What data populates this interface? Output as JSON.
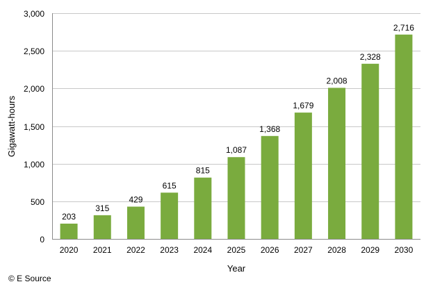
{
  "chart_data": {
    "type": "bar",
    "categories": [
      "2020",
      "2021",
      "2022",
      "2023",
      "2024",
      "2025",
      "2026",
      "2027",
      "2028",
      "2029",
      "2030"
    ],
    "values": [
      203,
      315,
      429,
      615,
      815,
      1087,
      1368,
      1679,
      2008,
      2328,
      2716
    ],
    "data_labels": [
      "203",
      "315",
      "429",
      "615",
      "815",
      "1,087",
      "1,368",
      "1,679",
      "2,008",
      "2,328",
      "2,716"
    ],
    "title": "",
    "xlabel": "Year",
    "ylabel": "Gigawatt-hours",
    "ylim": [
      0,
      3000
    ],
    "yticks": [
      0,
      500,
      1000,
      1500,
      2000,
      2500,
      3000
    ],
    "ytick_labels": [
      "0",
      "500",
      "1,000",
      "1,500",
      "2,000",
      "2,500",
      "3,000"
    ],
    "grid": "horizontal",
    "bar_color": "#7aab3e"
  },
  "footer": {
    "copyright": "© E Source"
  }
}
